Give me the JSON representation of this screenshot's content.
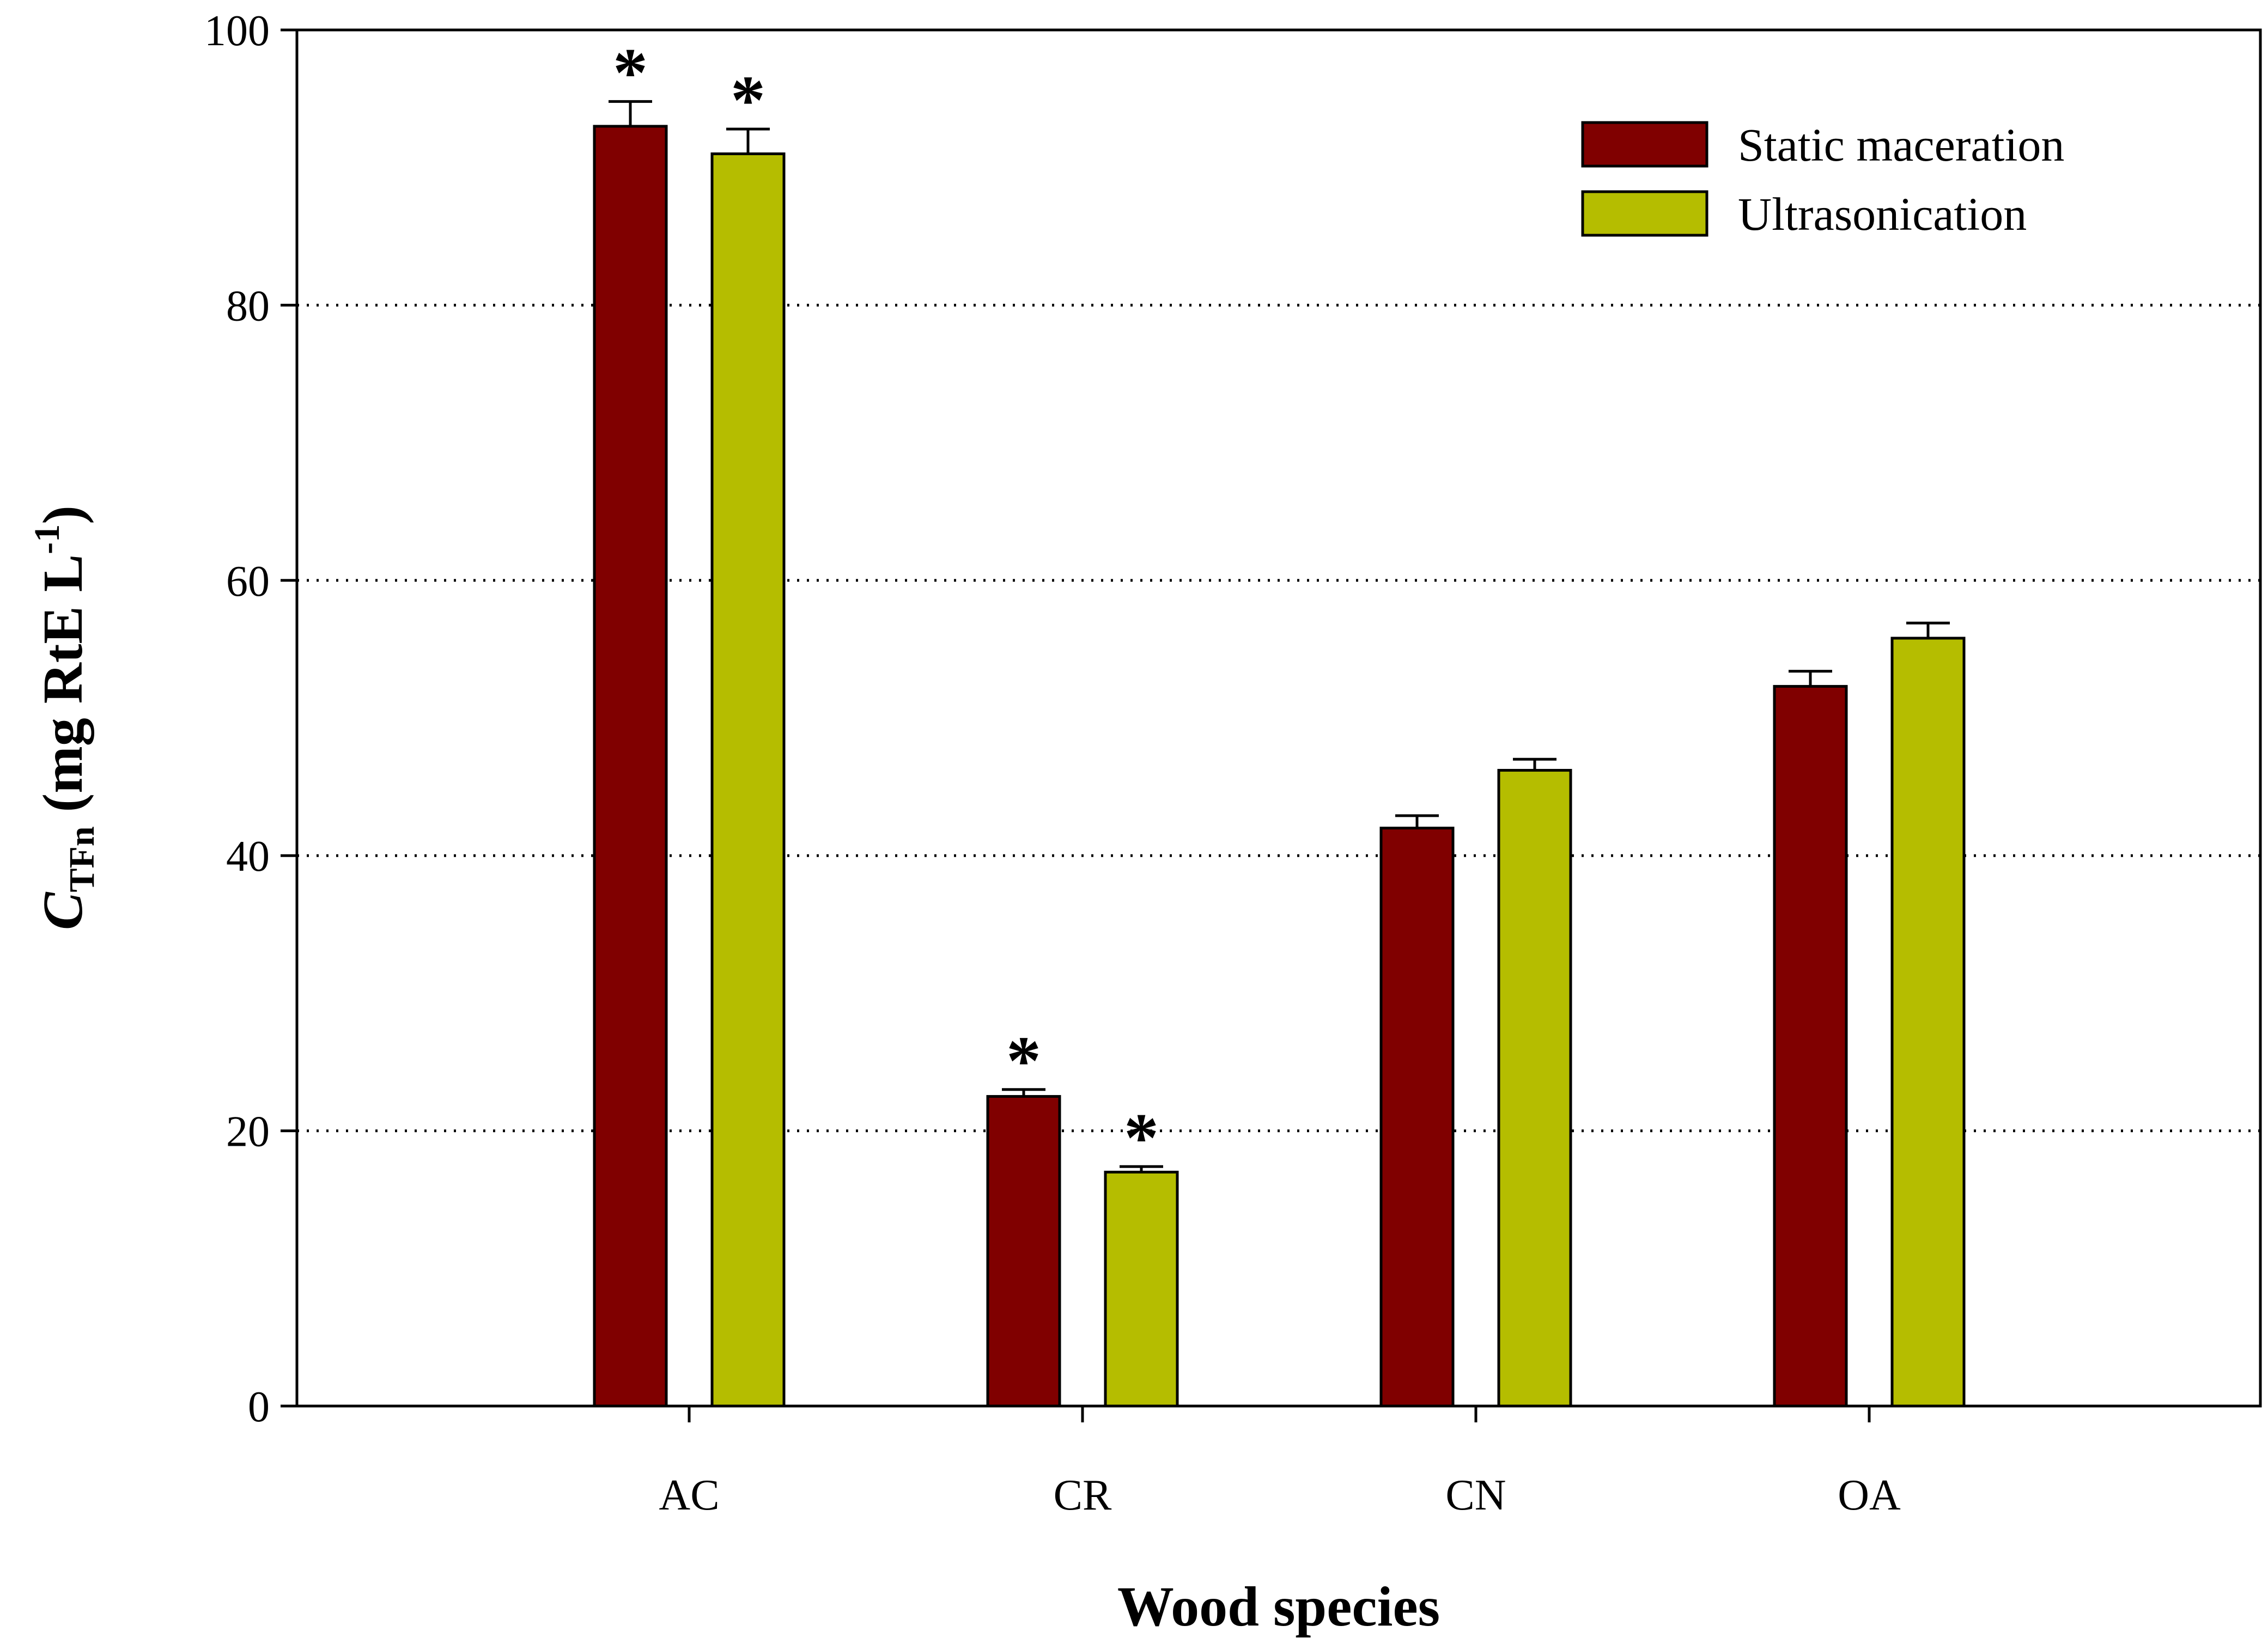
{
  "chart_data": {
    "type": "bar",
    "title": "",
    "categories": [
      "AC",
      "CR",
      "CN",
      "OA"
    ],
    "series": [
      {
        "name": "Static maceration",
        "color": "#800000",
        "values": [
          93.0,
          22.5,
          42.0,
          52.3
        ],
        "errors": [
          1.8,
          0.5,
          0.9,
          1.1
        ],
        "significant": [
          true,
          true,
          false,
          false
        ]
      },
      {
        "name": "Ultrasonication",
        "color": "#b5bd00",
        "values": [
          91.0,
          17.0,
          46.2,
          55.8
        ],
        "errors": [
          1.8,
          0.4,
          0.8,
          1.1
        ],
        "significant": [
          true,
          true,
          false,
          false
        ]
      }
    ],
    "significance_marker": "*",
    "xlabel": "Wood species",
    "ylabel": {
      "symbol": "C",
      "subscript": "TFn",
      "unit_open": " (mg RtE L",
      "superscript": "-1",
      "unit_close": ")"
    },
    "ylim": [
      0,
      100
    ],
    "yticks": [
      "0",
      "20",
      "40",
      "60",
      "80",
      "100"
    ],
    "gridlines": [
      20,
      40,
      60,
      80
    ],
    "grid": "dotted horizontal",
    "legend": {
      "position": "top-right",
      "entries": [
        "Static maceration",
        "Ultrasonication"
      ]
    }
  }
}
